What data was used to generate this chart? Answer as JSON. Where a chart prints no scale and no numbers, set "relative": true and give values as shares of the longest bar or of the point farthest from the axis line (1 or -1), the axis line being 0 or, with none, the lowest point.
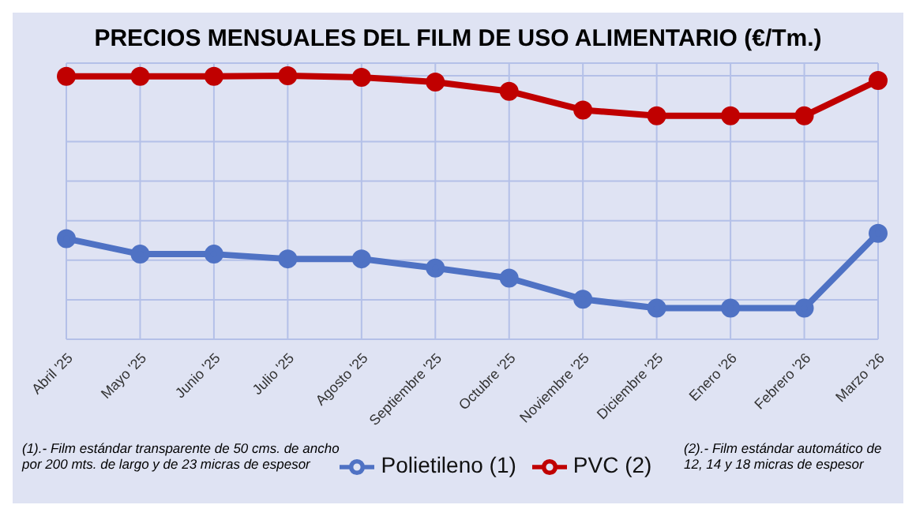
{
  "chart_data": {
    "type": "line",
    "title": "PRECIOS MENSUALES DEL FILM DE USO ALIMENTARIO (€/Tm.)",
    "relative": true,
    "categories": [
      "Abril '25",
      "Mayo '25",
      "Junio '25",
      "Julio '25",
      "Agosto '25",
      "Septiembre '25",
      "Octubre '25",
      "Noviembre '25",
      "Diciembre '25",
      "Enero '26",
      "Febrero '26",
      "Marzo '26"
    ],
    "series": [
      {
        "name": "Polietileno (1)",
        "color": "#4f72c4",
        "values": [
          0.382,
          0.323,
          0.323,
          0.305,
          0.305,
          0.27,
          0.232,
          0.152,
          0.118,
          0.118,
          0.118,
          0.402
        ]
      },
      {
        "name": "PVC (2)",
        "color": "#c00000",
        "values": [
          0.998,
          0.998,
          0.998,
          1,
          0.994,
          0.976,
          0.941,
          0.87,
          0.848,
          0.848,
          0.848,
          0.982
        ]
      }
    ],
    "annotations": [
      "(1).- Film estándar transparente de 50 cms. de ancho por 200 mts. de largo y de 23 micras de espesor",
      "(2).- Film estándar automático de 12, 14 y 18 micras de espesor"
    ],
    "grid": true,
    "legend": "bottom",
    "marker": "circle",
    "line_style": "solid"
  }
}
